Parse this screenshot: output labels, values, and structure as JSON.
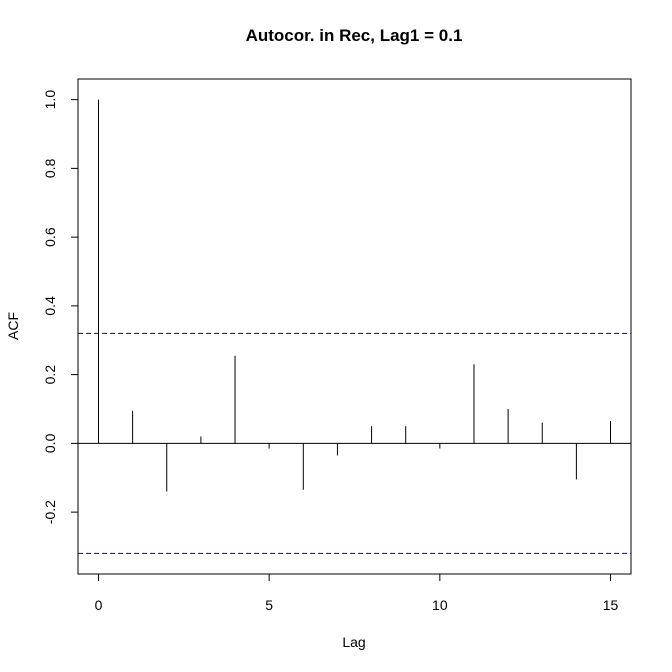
{
  "chart_data": {
    "type": "bar",
    "title": "Autocor. in Rec, Lag1 = 0.1",
    "xlabel": "Lag",
    "ylabel": "ACF",
    "xlim": [
      -0.6,
      15.6
    ],
    "ylim": [
      -0.38,
      1.06
    ],
    "x_ticks": [
      0,
      5,
      10,
      15
    ],
    "x_tick_labels": [
      "0",
      "5",
      "10",
      "15"
    ],
    "y_ticks": [
      -0.2,
      0.0,
      0.2,
      0.4,
      0.6,
      0.8,
      1.0
    ],
    "y_tick_labels": [
      "-0.2",
      "0.0",
      "0.2",
      "0.4",
      "0.6",
      "0.8",
      "1.0"
    ],
    "lags": [
      0,
      1,
      2,
      3,
      4,
      5,
      6,
      7,
      8,
      9,
      10,
      11,
      12,
      13,
      14,
      15
    ],
    "values": [
      1.0,
      0.095,
      -0.14,
      0.02,
      0.255,
      -0.015,
      -0.135,
      -0.035,
      0.05,
      0.05,
      -0.015,
      0.23,
      0.1,
      0.06,
      -0.105,
      0.065
    ],
    "confidence_bounds": [
      0.32,
      -0.32
    ],
    "colors": {
      "bars": "#000000",
      "confidence": "#0000cc",
      "axis": "#000000"
    },
    "grid": false
  }
}
